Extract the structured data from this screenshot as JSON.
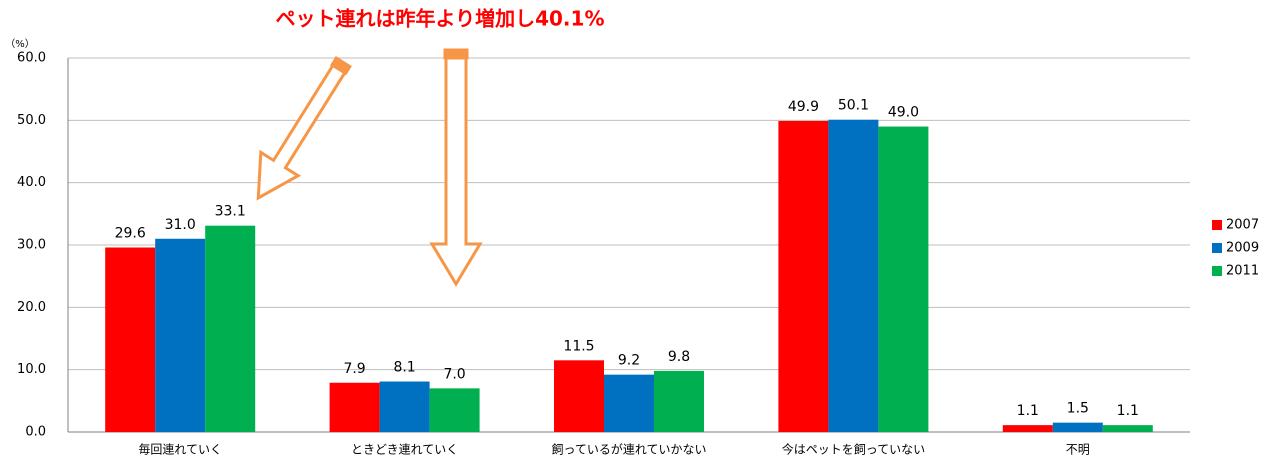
{
  "chart_data": {
    "type": "bar",
    "title": "ペット連れは昨年より増加し40.1%",
    "y_unit": "（%）",
    "categories": [
      "毎回連れていく",
      "ときどき連れていく",
      "飼っているが連れていかない",
      "今はペットを飼っていない",
      "不明"
    ],
    "series": [
      {
        "name": "2007",
        "color": "#ff0000",
        "values": [
          29.6,
          7.9,
          11.5,
          49.9,
          1.1
        ],
        "value_labels": [
          "29.6",
          "7.9",
          "11.5",
          "49.9",
          "1.1"
        ]
      },
      {
        "name": "2009",
        "color": "#0070c0",
        "values": [
          31.0,
          8.1,
          9.2,
          50.1,
          1.5
        ],
        "value_labels": [
          "31.0",
          "8.1",
          "9.2",
          "50.1",
          "1.5"
        ]
      },
      {
        "name": "2011",
        "color": "#00b050",
        "values": [
          33.1,
          7.0,
          9.8,
          49.0,
          1.1
        ],
        "value_labels": [
          "33.1",
          "7.0",
          "9.8",
          "49.0",
          "1.1"
        ]
      }
    ],
    "ylim": [
      0,
      60
    ],
    "yticks": [
      {
        "value": 0,
        "label": "0.0"
      },
      {
        "value": 10,
        "label": "10.0"
      },
      {
        "value": 20,
        "label": "20.0"
      },
      {
        "value": 30,
        "label": "30.0"
      },
      {
        "value": 40,
        "label": "40.0"
      },
      {
        "value": 50,
        "label": "50.0"
      },
      {
        "value": 60,
        "label": "60.0"
      }
    ],
    "grid": true,
    "legend": "right"
  }
}
